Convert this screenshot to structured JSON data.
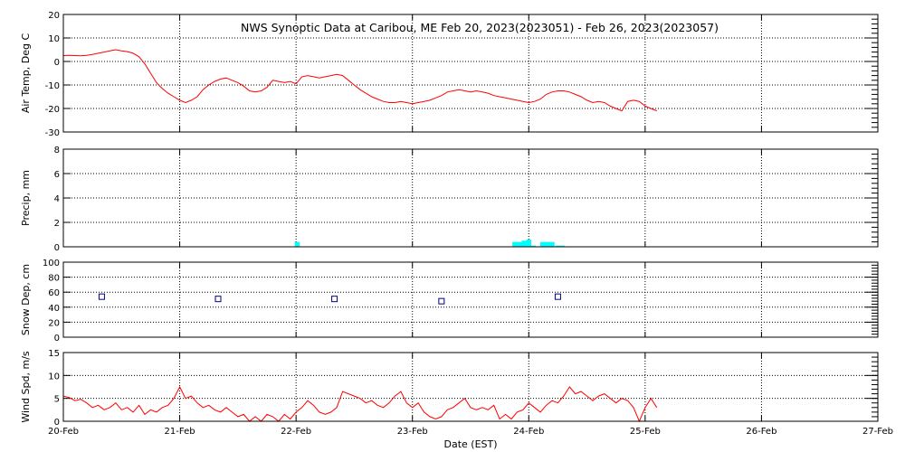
{
  "title": "NWS Synoptic Data at Caribou, ME   Feb 20, 2023(2023051) - Feb 26, 2023(2023057)",
  "xlabel": "Date (EST)",
  "x_tick_labels": [
    "20-Feb",
    "21-Feb",
    "22-Feb",
    "23-Feb",
    "24-Feb",
    "25-Feb",
    "26-Feb",
    "27-Feb"
  ],
  "colors": {
    "temp": "#ff0000",
    "precip": "#00ffff",
    "snow": "#000080",
    "wind": "#ff0000"
  },
  "chart_data": [
    {
      "type": "line",
      "ylabel": "Air Temp, Deg C",
      "ylim": [
        -30,
        20
      ],
      "yticks": [
        -30,
        -20,
        -10,
        0,
        10,
        20
      ],
      "x_unit": "days since 20-Feb 00:00 EST",
      "x": [
        0,
        0.05,
        0.1,
        0.15,
        0.2,
        0.25,
        0.3,
        0.35,
        0.4,
        0.45,
        0.5,
        0.55,
        0.6,
        0.65,
        0.7,
        0.75,
        0.8,
        0.85,
        0.9,
        0.95,
        1.0,
        1.05,
        1.1,
        1.15,
        1.2,
        1.25,
        1.3,
        1.35,
        1.4,
        1.45,
        1.5,
        1.55,
        1.6,
        1.65,
        1.7,
        1.75,
        1.8,
        1.85,
        1.9,
        1.95,
        2.0,
        2.05,
        2.1,
        2.15,
        2.2,
        2.25,
        2.3,
        2.35,
        2.4,
        2.45,
        2.5,
        2.55,
        2.6,
        2.65,
        2.7,
        2.75,
        2.8,
        2.85,
        2.9,
        2.95,
        3.0,
        3.05,
        3.1,
        3.15,
        3.2,
        3.25,
        3.3,
        3.35,
        3.4,
        3.45,
        3.5,
        3.55,
        3.6,
        3.65,
        3.7,
        3.75,
        3.8,
        3.85,
        3.9,
        3.95,
        4.0,
        4.05,
        4.1,
        4.15,
        4.2,
        4.25,
        4.3,
        4.35,
        4.4,
        4.45,
        4.5,
        4.55,
        4.6,
        4.65,
        4.7,
        4.75,
        4.8,
        4.85,
        4.9,
        4.95,
        5.0,
        5.05,
        5.1
      ],
      "series": [
        {
          "name": "Air Temp",
          "values": [
            2.5,
            2.6,
            2.5,
            2.4,
            2.6,
            3.0,
            3.5,
            4.0,
            4.5,
            5.0,
            4.5,
            4.2,
            3.5,
            2.0,
            -1.0,
            -5.0,
            -9.0,
            -11.5,
            -13.5,
            -15.0,
            -16.5,
            -17.5,
            -16.5,
            -15.0,
            -12.0,
            -10.0,
            -8.5,
            -7.5,
            -7.0,
            -8.0,
            -9.0,
            -10.5,
            -12.5,
            -13.0,
            -12.5,
            -11.0,
            -8.0,
            -8.5,
            -9.0,
            -8.5,
            -9.5,
            -6.5,
            -6.0,
            -6.5,
            -7.0,
            -6.5,
            -6.0,
            -5.5,
            -6.0,
            -8.0,
            -10.0,
            -12.0,
            -13.5,
            -15.0,
            -16.0,
            -17.0,
            -17.5,
            -17.5,
            -17.0,
            -17.5,
            -18.0,
            -17.5,
            -17.0,
            -16.5,
            -15.5,
            -14.5,
            -13.0,
            -12.5,
            -12.0,
            -12.5,
            -13.0,
            -12.5,
            -13.0,
            -13.5,
            -14.5,
            -15.0,
            -15.5,
            -16.0,
            -16.5,
            -17.0,
            -17.5,
            -17.0,
            -16.0,
            -14.0,
            -13.0,
            -12.5,
            -12.5,
            -13.0,
            -14.0,
            -15.0,
            -16.5,
            -17.5,
            -17.0,
            -17.5,
            -19.0,
            -20.0,
            -21.0,
            -17.0,
            -16.5,
            -17.0,
            -19.0,
            -20.0,
            -21.0
          ]
        }
      ]
    },
    {
      "type": "bar",
      "ylabel": "Precip, mm",
      "ylim": [
        0,
        8
      ],
      "yticks": [
        0,
        2,
        4,
        6,
        8
      ],
      "x_unit": "days since 20-Feb 00:00 EST",
      "bar_width_days": 0.042,
      "x": [
        2.01,
        3.88,
        3.92,
        3.96,
        4.0,
        4.04,
        4.12,
        4.16,
        4.2,
        4.25,
        4.29
      ],
      "values": [
        0.4,
        0.4,
        0.4,
        0.5,
        0.6,
        0.1,
        0.4,
        0.4,
        0.4,
        0.1,
        0.1
      ]
    },
    {
      "type": "scatter",
      "ylabel": "Snow Dep, cm",
      "ylim": [
        0,
        100
      ],
      "yticks": [
        0,
        20,
        40,
        60,
        80,
        100
      ],
      "x_unit": "days since 20-Feb 00:00 EST",
      "x": [
        0.33,
        1.33,
        2.33,
        3.25,
        4.25
      ],
      "values": [
        54,
        51,
        51,
        48,
        54
      ]
    },
    {
      "type": "line",
      "ylabel": "Wind Spd, m/s",
      "ylim": [
        0,
        15
      ],
      "yticks": [
        0,
        5,
        10,
        15
      ],
      "x_unit": "days since 20-Feb 00:00 EST",
      "x": [
        0,
        0.05,
        0.1,
        0.15,
        0.2,
        0.25,
        0.3,
        0.35,
        0.4,
        0.45,
        0.5,
        0.55,
        0.6,
        0.65,
        0.7,
        0.75,
        0.8,
        0.85,
        0.9,
        0.95,
        1.0,
        1.05,
        1.1,
        1.15,
        1.2,
        1.25,
        1.3,
        1.35,
        1.4,
        1.45,
        1.5,
        1.55,
        1.6,
        1.65,
        1.7,
        1.75,
        1.8,
        1.85,
        1.9,
        1.95,
        2.0,
        2.05,
        2.1,
        2.15,
        2.2,
        2.25,
        2.3,
        2.35,
        2.4,
        2.45,
        2.5,
        2.55,
        2.6,
        2.65,
        2.7,
        2.75,
        2.8,
        2.85,
        2.9,
        2.95,
        3.0,
        3.05,
        3.1,
        3.15,
        3.2,
        3.25,
        3.3,
        3.35,
        3.4,
        3.45,
        3.5,
        3.55,
        3.6,
        3.65,
        3.7,
        3.75,
        3.8,
        3.85,
        3.9,
        3.95,
        4.0,
        4.05,
        4.1,
        4.15,
        4.2,
        4.25,
        4.3,
        4.35,
        4.4,
        4.45,
        4.5,
        4.55,
        4.6,
        4.65,
        4.7,
        4.75,
        4.8,
        4.85,
        4.9,
        4.95,
        5.0,
        5.05,
        5.1
      ],
      "series": [
        {
          "name": "Wind Speed",
          "values": [
            5.5,
            5.2,
            4.5,
            4.8,
            4.0,
            3.0,
            3.5,
            2.5,
            3.0,
            4.0,
            2.5,
            3.0,
            2.0,
            3.5,
            1.5,
            2.5,
            2.0,
            3.0,
            3.5,
            5.0,
            7.5,
            5.0,
            5.5,
            4.0,
            3.0,
            3.5,
            2.5,
            2.0,
            3.0,
            2.0,
            1.0,
            1.5,
            0.0,
            1.0,
            0.0,
            1.5,
            1.0,
            0.0,
            1.5,
            0.5,
            2.0,
            3.0,
            4.5,
            3.5,
            2.0,
            1.5,
            2.0,
            3.0,
            6.5,
            6.0,
            5.5,
            5.0,
            4.0,
            4.5,
            3.5,
            3.0,
            4.0,
            5.5,
            6.5,
            4.0,
            3.0,
            4.0,
            2.0,
            1.0,
            0.5,
            1.0,
            2.5,
            3.0,
            4.0,
            5.0,
            3.0,
            2.5,
            3.0,
            2.5,
            3.5,
            0.5,
            1.5,
            0.5,
            2.0,
            2.5,
            4.0,
            3.0,
            2.0,
            3.5,
            4.5,
            4.0,
            5.5,
            7.5,
            6.0,
            6.5,
            5.5,
            4.5,
            5.5,
            6.0,
            5.0,
            4.0,
            5.0,
            4.5,
            3.0,
            0.0,
            3.0,
            5.0,
            3.0
          ]
        }
      ]
    }
  ]
}
